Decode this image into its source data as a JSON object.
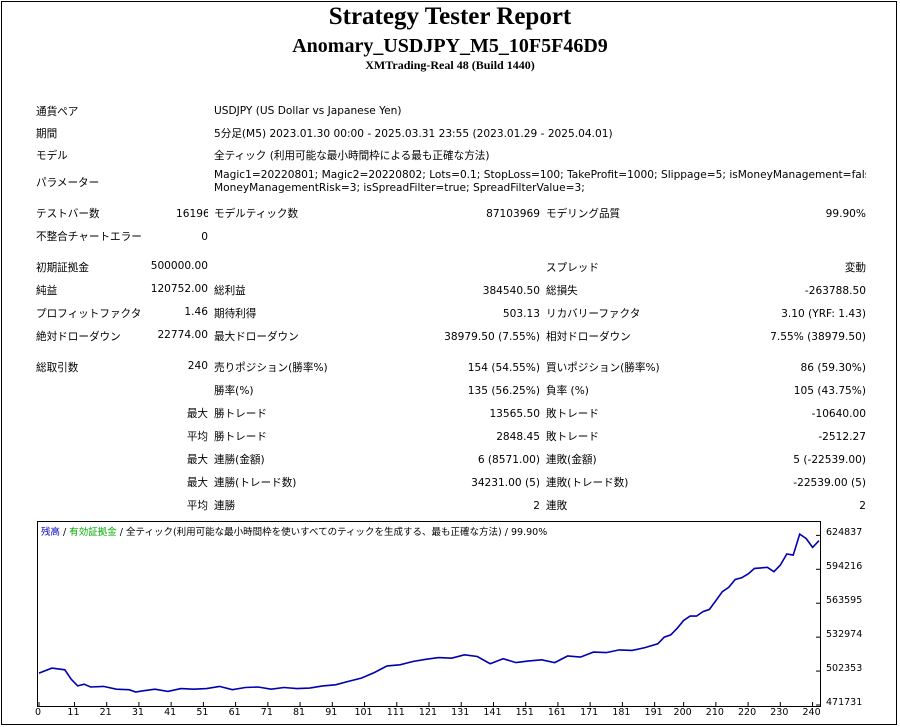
{
  "header": {
    "title": "Strategy Tester Report",
    "subtitle": "Anomary_USDJPY_M5_10F5F46D9",
    "server": "XMTrading-Real 48 (Build 1440)"
  },
  "info": {
    "symbol_label": "通貨ペア",
    "symbol_value": "USDJPY (US Dollar vs Japanese Yen)",
    "period_label": "期間",
    "period_value": "5分足(M5) 2023.01.30 00:00 - 2025.03.31 23:55 (2023.01.29 - 2025.04.01)",
    "model_label": "モデル",
    "model_value": "全ティック (利用可能な最小時間枠による最も正確な方法)",
    "params_label": "パラメーター",
    "params_line1": "Magic1=20220801; Magic2=20220802; Lots=0.1; StopLoss=100; TakeProfit=1000; Slippage=5; isMoneyManagement=false;",
    "params_line2": "MoneyManagementRisk=3; isSpreadFilter=true; SpreadFilterValue=3;"
  },
  "stats": {
    "bars_label": "テストバー数",
    "bars_value": "161969",
    "ticks_label": "モデルティック数",
    "ticks_value": "87103969",
    "quality_label": "モデリング品質",
    "quality_value": "99.90%",
    "mismatch_label": "不整合チャートエラー",
    "mismatch_value": "0",
    "deposit_label": "初期証拠金",
    "deposit_value": "500000.00",
    "spread_label": "スプレッド",
    "spread_value": "変動",
    "net_label": "純益",
    "net_value": "120752.00",
    "gross_profit_label": "総利益",
    "gross_profit_value": "384540.50",
    "gross_loss_label": "総損失",
    "gross_loss_value": "-263788.50",
    "pf_label": "プロフィットファクタ",
    "pf_value": "1.46",
    "expected_label": "期待利得",
    "expected_value": "503.13",
    "recovery_label": "リカバリーファクタ",
    "recovery_value": "3.10 (YRF: 1.43)",
    "abs_dd_label": "絶対ドローダウン",
    "abs_dd_value": "22774.00",
    "max_dd_label": "最大ドローダウン",
    "max_dd_value": "38979.50 (7.55%)",
    "rel_dd_label": "相対ドローダウン",
    "rel_dd_value": "7.55% (38979.50)",
    "trades_label": "総取引数",
    "trades_value": "240",
    "short_label": "売りポジション(勝率%)",
    "short_value": "154 (54.55%)",
    "long_label": "買いポジション(勝率%)",
    "long_value": "86 (59.30%)",
    "win_pct_label": "勝率(%)",
    "win_pct_value": "135 (56.25%)",
    "loss_pct_label": "負率 (%)",
    "loss_pct_value": "105 (43.75%)",
    "max_word": "最大",
    "avg_word": "平均",
    "largest_win_label": "勝トレード",
    "largest_win_value": "13565.50",
    "largest_loss_label": "敗トレード",
    "largest_loss_value": "-10640.00",
    "avg_win_label": "勝トレード",
    "avg_win_value": "2848.45",
    "avg_loss_label": "敗トレード",
    "avg_loss_value": "-2512.27",
    "cons_wins_money_label": "連勝(金額)",
    "cons_wins_money_value": "6 (8571.00)",
    "cons_loss_money_label": "連敗(金額)",
    "cons_loss_money_value": "5 (-22539.00)",
    "cons_wins_count_label": "連勝(トレード数)",
    "cons_wins_count_value": "34231.00 (5)",
    "cons_loss_count_label": "連敗(トレード数)",
    "cons_loss_count_value": "-22539.00 (5)",
    "avg_cons_wins_label": "連勝",
    "avg_cons_wins_value": "2",
    "avg_cons_loss_label": "連敗",
    "avg_cons_loss_value": "2"
  },
  "chart_legend": {
    "balance": "残高",
    "sep1": " / ",
    "volume": "有効証拠金",
    "sep2": " / ",
    "model": "全ティック(利用可能な最小時間枠を使いすべてのティックを生成する、最も正確な方法)",
    "quality": " / 99.90%",
    "balance_color": "#0000cc",
    "volume_color": "#00aa00",
    "line_color": "#0000b0"
  },
  "chart_data": {
    "type": "line",
    "title": "",
    "y_ticks": [
      "624837",
      "594216",
      "563595",
      "532974",
      "502353",
      "471731"
    ],
    "x_ticks": [
      "0",
      "11",
      "21",
      "31",
      "41",
      "51",
      "61",
      "71",
      "81",
      "91",
      "101",
      "111",
      "121",
      "131",
      "141",
      "151",
      "161",
      "171",
      "181",
      "191",
      "200",
      "210",
      "220",
      "230",
      "240"
    ],
    "xlim": [
      0,
      242
    ],
    "ylim": [
      471731,
      636000
    ],
    "series": [
      {
        "x": [
          0,
          4,
          8,
          10,
          12,
          14,
          16,
          20,
          24,
          28,
          30,
          32,
          36,
          40,
          44,
          48,
          52,
          56,
          60,
          64,
          68,
          72,
          76,
          80,
          84,
          88,
          92,
          96,
          100,
          104,
          108,
          112,
          116,
          120,
          124,
          128,
          132,
          136,
          140,
          144,
          148,
          152,
          156,
          160,
          164,
          168,
          172,
          176,
          180,
          184,
          188,
          192,
          194,
          196,
          198,
          200,
          202,
          204,
          206,
          208,
          210,
          212,
          214,
          216,
          218,
          220,
          222,
          224,
          226,
          228,
          230,
          232,
          234,
          236,
          238,
          240,
          242
        ],
        "values": [
          500500,
          505000,
          503500,
          495000,
          489000,
          490500,
          488000,
          488500,
          486000,
          485500,
          483500,
          484500,
          486000,
          484000,
          486500,
          486000,
          486500,
          488500,
          485500,
          487500,
          488000,
          486000,
          487500,
          486500,
          487000,
          489000,
          490000,
          493000,
          496000,
          501000,
          507000,
          508000,
          511000,
          513000,
          514500,
          514000,
          517000,
          515500,
          509000,
          513500,
          510000,
          511500,
          512500,
          510000,
          516000,
          515000,
          519500,
          519000,
          521500,
          521000,
          523500,
          527000,
          533000,
          535000,
          541000,
          548000,
          552000,
          552000,
          556000,
          558000,
          566000,
          574000,
          578000,
          585000,
          586500,
          590000,
          595000,
          595500,
          596000,
          592000,
          598000,
          608000,
          607000,
          626000,
          622000,
          614000,
          620000
        ]
      }
    ]
  }
}
